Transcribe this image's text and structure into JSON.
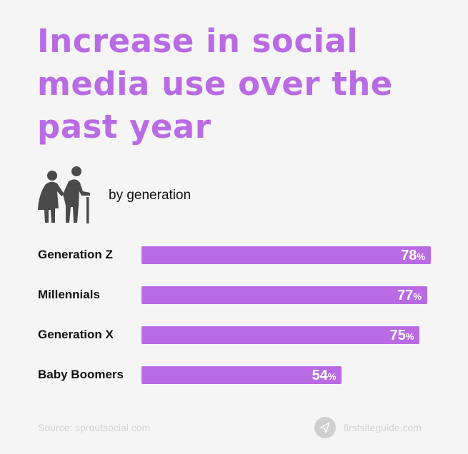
{
  "chart_data": {
    "type": "bar",
    "orientation": "horizontal",
    "title": "Increase in social media use over the past year",
    "subtitle": "by generation",
    "categories": [
      "Generation Z",
      "Millennials",
      "Generation X",
      "Baby Boomers"
    ],
    "values": [
      78,
      77,
      75,
      54
    ],
    "value_labels": [
      "78",
      "77",
      "75",
      "54"
    ],
    "unit": "%",
    "xlim": [
      0,
      100
    ],
    "grid": false,
    "bar_color": "#b96be3",
    "title_color": "#b96be3"
  },
  "icon": "elderly-couple-icon",
  "footer": {
    "source": "Source: sproutsocial.com",
    "brand": "firstsiteguide.com",
    "brand_icon": "navigation-arrow-icon"
  }
}
